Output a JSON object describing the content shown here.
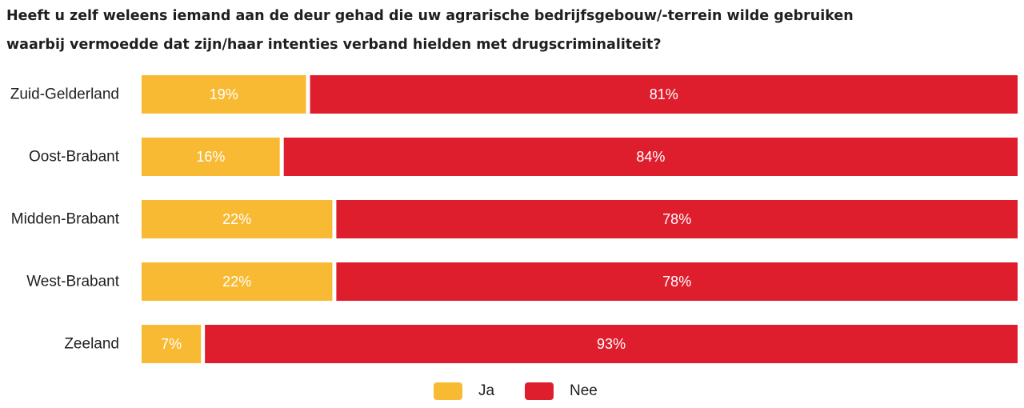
{
  "title_lines": [
    "Heeft u zelf weleens iemand aan de deur gehad die uw agrarische bedrijfsgebouw/-terrein wilde gebruiken",
    "waarbij vermoedde dat zijn/haar intenties verband hielden met drugscriminaliteit?"
  ],
  "colors": {
    "ja": "#F9BA33",
    "nee": "#DF1E2D"
  },
  "legend": {
    "ja_label": "Ja",
    "nee_label": "Nee"
  },
  "chart_data": {
    "type": "bar",
    "orientation": "horizontal",
    "stacked": true,
    "percent": true,
    "title": "Heeft u zelf weleens iemand aan de deur gehad die uw agrarische bedrijfsgebouw/-terrein wilde gebruiken waarbij vermoedde dat zijn/haar intenties verband hielden met drugscriminaliteit?",
    "categories": [
      "Zuid-Gelderland",
      "Oost-Brabant",
      "Midden-Brabant",
      "West-Brabant",
      "Zeeland"
    ],
    "series": [
      {
        "name": "Ja",
        "values": [
          19,
          16,
          22,
          22,
          7
        ],
        "labels": [
          "19%",
          "16%",
          "22%",
          "22%",
          "7%"
        ]
      },
      {
        "name": "Nee",
        "values": [
          81,
          84,
          78,
          78,
          93
        ],
        "labels": [
          "81%",
          "84%",
          "78%",
          "78%",
          "93%"
        ]
      }
    ],
    "legend_position": "bottom",
    "grid": false
  }
}
